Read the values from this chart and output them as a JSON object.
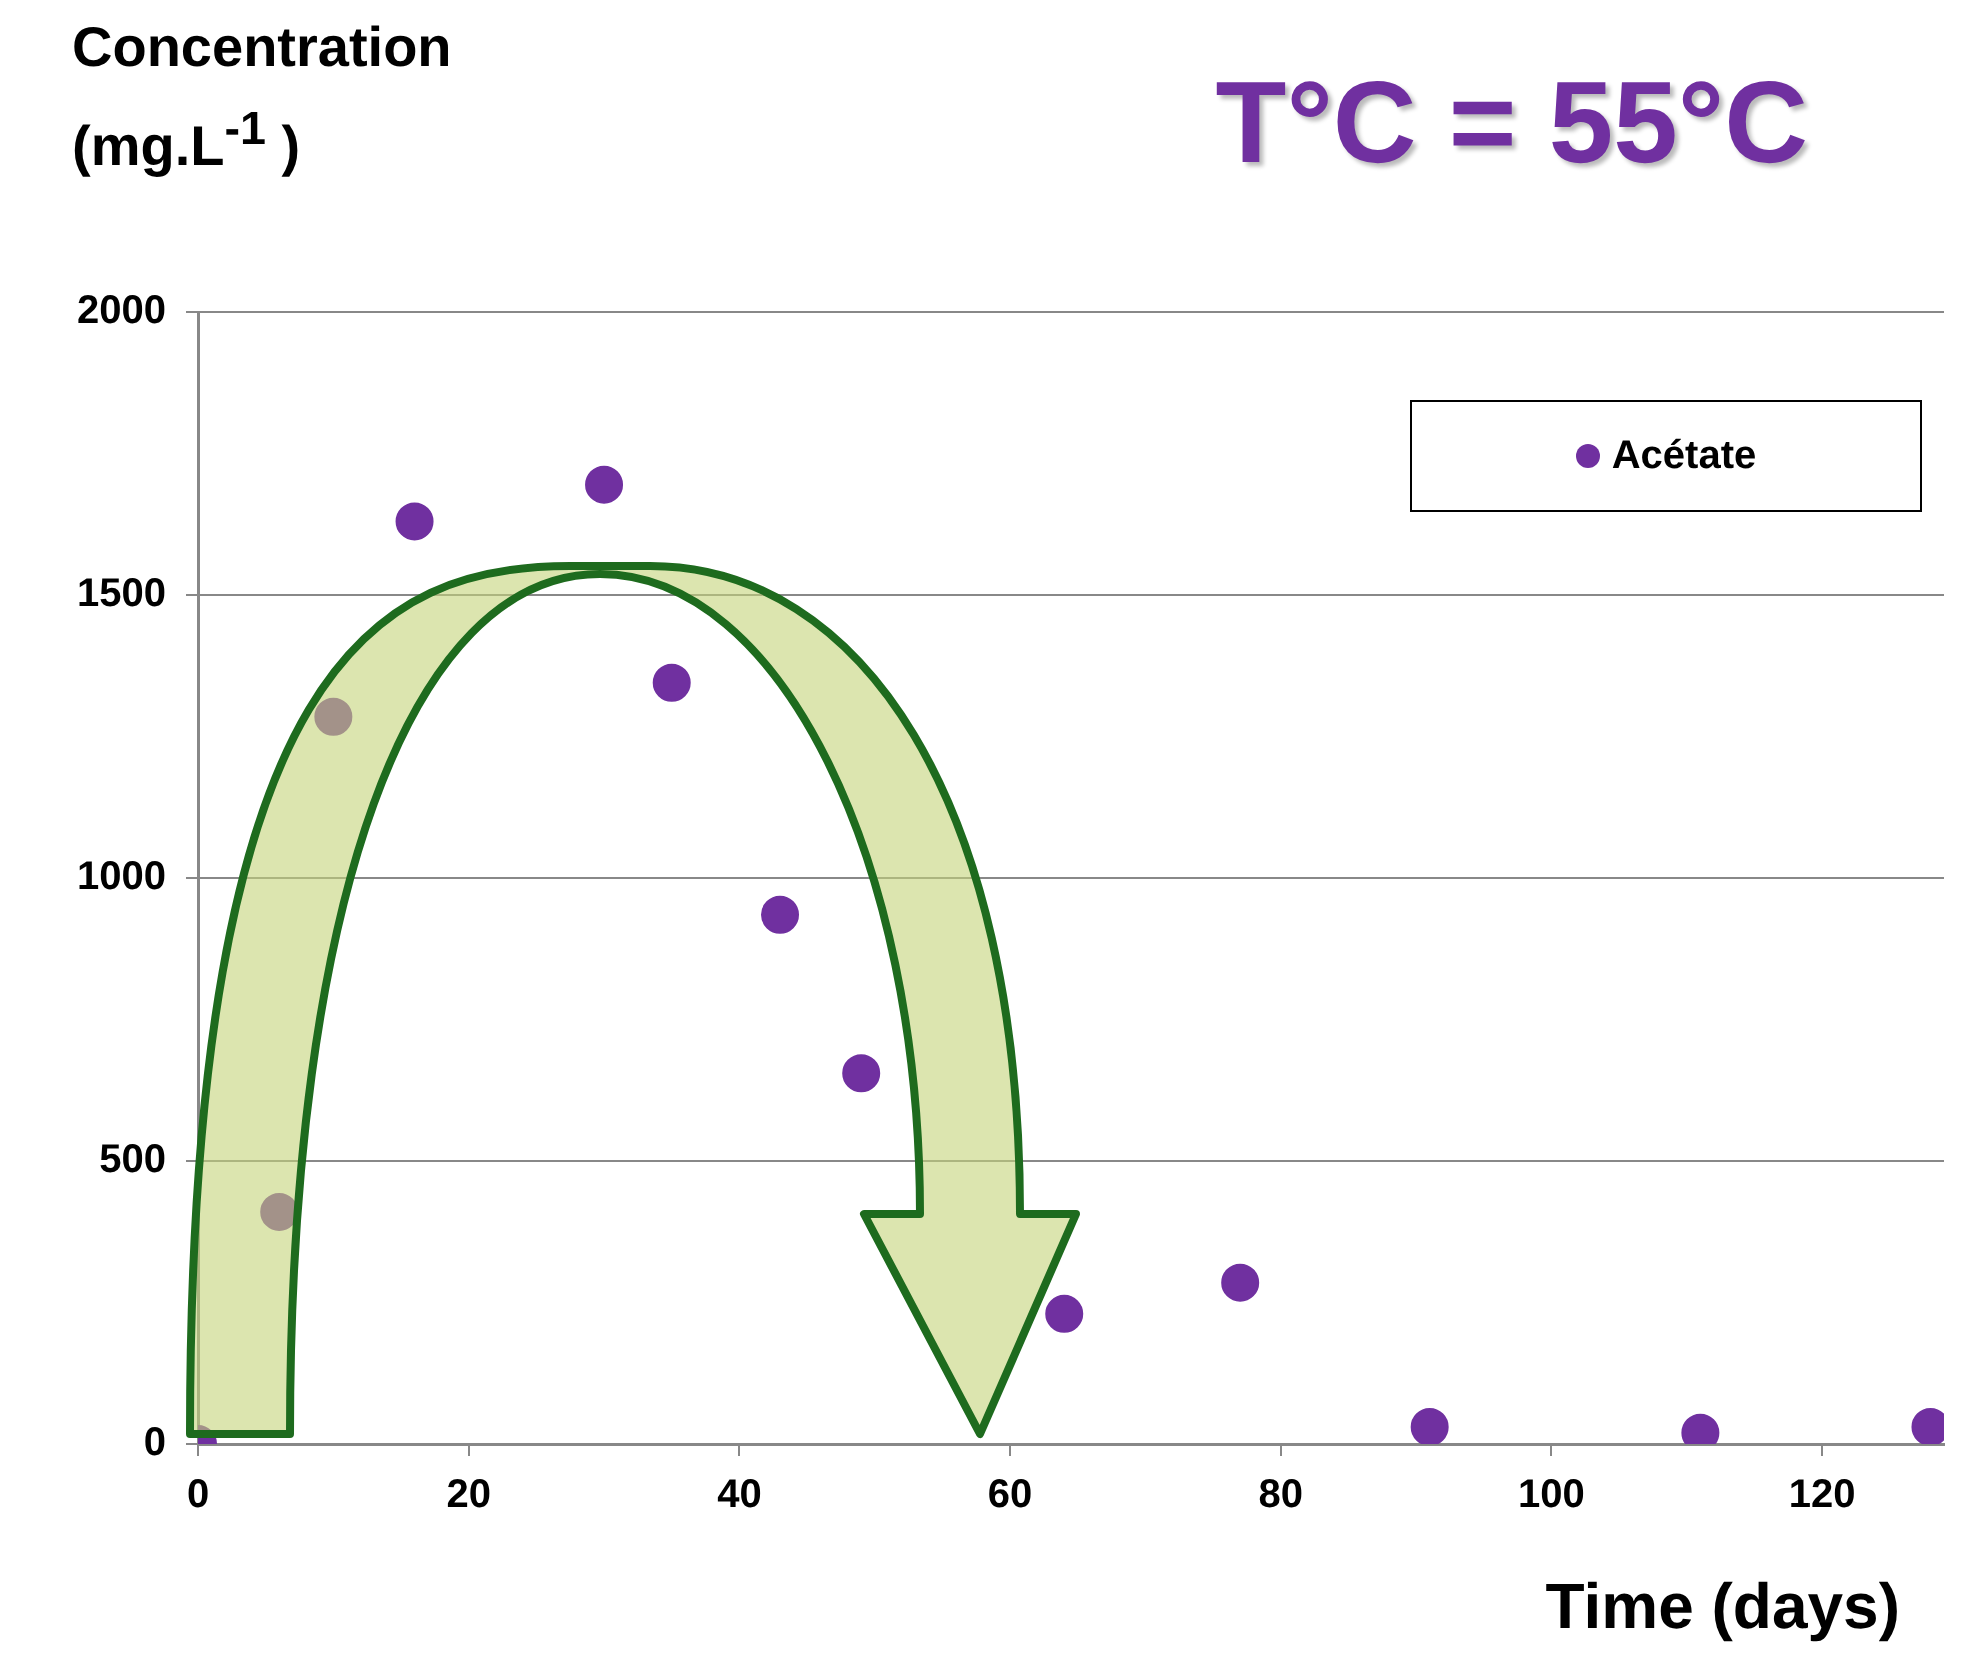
{
  "chart_data": {
    "type": "scatter",
    "title": "T°C = 55°C",
    "xlabel": "Time (days)",
    "ylabel": "Concentration (mg.L$^{-1}$ )",
    "x": [
      0,
      6,
      10,
      16,
      30,
      35,
      43,
      49,
      64,
      77,
      91,
      111,
      128
    ],
    "series": [
      {
        "name": "Acétate",
        "color": "#7030a0",
        "values": [
          0,
          410,
          1285,
          1630,
          1695,
          1345,
          935,
          655,
          230,
          285,
          30,
          20,
          30
        ]
      }
    ],
    "xlim": [
      0,
      129
    ],
    "ylim": [
      0,
      2000
    ],
    "xticks": [
      0,
      20,
      40,
      60,
      80,
      100,
      120
    ],
    "yticks": [
      0,
      500,
      1000,
      1500,
      2000
    ],
    "grid": "y",
    "legend": "top right",
    "marker": "circle"
  }
}
